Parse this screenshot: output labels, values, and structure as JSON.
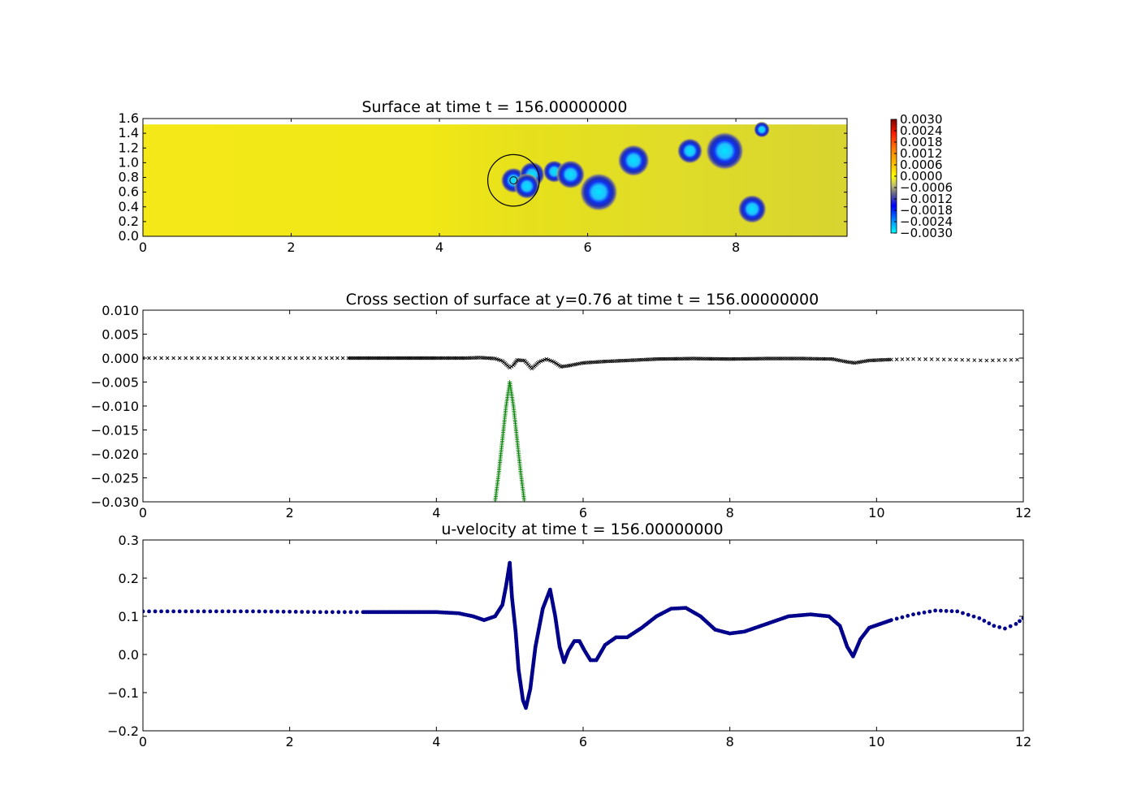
{
  "panels": [
    {
      "title": "Surface at time t =   156.00000000"
    },
    {
      "title": "Cross section of surface at y=0.76 at time t =   156.00000000"
    },
    {
      "title": "u-velocity at time t =   156.00000000"
    }
  ],
  "chart_data": [
    {
      "type": "heatmap",
      "title": "Surface at time t =   156.00000000",
      "xlim": [
        0,
        9.5
      ],
      "ylim": [
        0,
        1.6
      ],
      "field_extent_y": [
        0,
        1.52
      ],
      "xticks": [
        "0",
        "2",
        "4",
        "6",
        "8"
      ],
      "yticks": [
        "0.0",
        "0.2",
        "0.4",
        "0.6",
        "0.8",
        "1.0",
        "1.2",
        "1.4",
        "1.6"
      ],
      "colorbar": {
        "range": [
          -0.003,
          0.003
        ],
        "ticks": [
          "0.0030",
          "0.0024",
          "0.0018",
          "0.0012",
          "0.0006",
          "0.0000",
          "−0.0006",
          "−0.0012",
          "−0.0018",
          "−0.0024",
          "−0.0030"
        ]
      },
      "depressions": [
        {
          "x": 5.0,
          "y": 0.76,
          "depth": -0.003,
          "r": 0.08
        },
        {
          "x": 5.25,
          "y": 0.84,
          "depth": -0.0028,
          "r": 0.08
        },
        {
          "x": 5.18,
          "y": 0.68,
          "depth": -0.0028,
          "r": 0.08
        },
        {
          "x": 5.55,
          "y": 0.88,
          "depth": -0.0025,
          "r": 0.07
        },
        {
          "x": 5.77,
          "y": 0.84,
          "depth": -0.0028,
          "r": 0.09
        },
        {
          "x": 6.15,
          "y": 0.6,
          "depth": -0.003,
          "r": 0.12
        },
        {
          "x": 6.62,
          "y": 1.03,
          "depth": -0.003,
          "r": 0.1
        },
        {
          "x": 7.38,
          "y": 1.16,
          "depth": -0.0028,
          "r": 0.08
        },
        {
          "x": 7.85,
          "y": 1.16,
          "depth": -0.003,
          "r": 0.12
        },
        {
          "x": 8.22,
          "y": 0.37,
          "depth": -0.003,
          "r": 0.09
        },
        {
          "x": 8.35,
          "y": 1.45,
          "depth": -0.0022,
          "r": 0.05
        }
      ],
      "circle": {
        "x": 5.0,
        "y": 0.76,
        "r": 0.35
      },
      "inner_circle": {
        "x": 5.0,
        "y": 0.76,
        "r": 0.05
      }
    },
    {
      "type": "scatter",
      "title": "Cross section of surface at y=0.76 at time t =   156.00000000",
      "xlim": [
        0,
        12
      ],
      "ylim": [
        -0.03,
        0.01
      ],
      "xticks": [
        "0",
        "2",
        "4",
        "6",
        "8",
        "10",
        "12"
      ],
      "yticks": [
        "0.010",
        "0.005",
        "0.000",
        "−0.005",
        "−0.010",
        "−0.015",
        "−0.020",
        "−0.025",
        "−0.030"
      ],
      "series": [
        {
          "marker": "x",
          "color": "#000000",
          "points": [
            [
              0,
              0
            ],
            [
              0.5,
              0
            ],
            [
              1,
              0
            ],
            [
              1.5,
              0
            ],
            [
              2,
              0
            ],
            [
              2.5,
              0
            ],
            [
              2.8,
              0
            ],
            [
              3.5,
              0
            ],
            [
              4,
              0
            ],
            [
              4.4,
              0
            ],
            [
              4.6,
              0.0001
            ],
            [
              4.8,
              -0.0001
            ],
            [
              4.9,
              -0.0006
            ],
            [
              5.0,
              -0.002
            ],
            [
              5.05,
              -0.0015
            ],
            [
              5.1,
              -0.0004
            ],
            [
              5.2,
              -0.0005
            ],
            [
              5.3,
              -0.0022
            ],
            [
              5.4,
              -0.0008
            ],
            [
              5.5,
              -0.0002
            ],
            [
              5.6,
              -0.0008
            ],
            [
              5.7,
              -0.0018
            ],
            [
              5.8,
              -0.0016
            ],
            [
              6,
              -0.001
            ],
            [
              6.3,
              -0.0007
            ],
            [
              6.6,
              -0.0005
            ],
            [
              7,
              -0.0002
            ],
            [
              7.5,
              -0.0001
            ],
            [
              8,
              -0.0002
            ],
            [
              8.5,
              -0.0001
            ],
            [
              9,
              -0.0001
            ],
            [
              9.4,
              -0.0002
            ],
            [
              9.6,
              -0.0008
            ],
            [
              9.7,
              -0.001
            ],
            [
              9.9,
              -0.0005
            ],
            [
              10.2,
              -0.0003
            ],
            [
              10.5,
              -0.0002
            ],
            [
              11,
              -0.0003
            ],
            [
              11.5,
              -0.0005
            ],
            [
              12,
              -0.0003
            ]
          ]
        },
        {
          "marker": "+",
          "color": "#008000",
          "points": [
            [
              4.8,
              -0.03
            ],
            [
              4.85,
              -0.024
            ],
            [
              4.9,
              -0.017
            ],
            [
              4.95,
              -0.01
            ],
            [
              5.0,
              -0.005
            ],
            [
              5.05,
              -0.01
            ],
            [
              5.1,
              -0.017
            ],
            [
              5.15,
              -0.024
            ],
            [
              5.2,
              -0.03
            ]
          ]
        }
      ]
    },
    {
      "type": "scatter",
      "title": "u-velocity at time t =   156.00000000",
      "xlim": [
        0,
        12
      ],
      "ylim": [
        -0.2,
        0.3
      ],
      "xticks": [
        "0",
        "2",
        "4",
        "6",
        "8",
        "10",
        "12"
      ],
      "yticks": [
        "0.3",
        "0.2",
        "0.1",
        "0.0",
        "−0.1",
        "−0.2"
      ],
      "series": [
        {
          "marker": "o",
          "color": "#00008b",
          "points": [
            [
              0,
              0.113
            ],
            [
              0.5,
              0.113
            ],
            [
              1,
              0.113
            ],
            [
              1.5,
              0.113
            ],
            [
              2,
              0.112
            ],
            [
              2.5,
              0.111
            ],
            [
              3,
              0.111
            ],
            [
              3.5,
              0.111
            ],
            [
              4,
              0.111
            ],
            [
              4.3,
              0.108
            ],
            [
              4.5,
              0.1
            ],
            [
              4.65,
              0.09
            ],
            [
              4.8,
              0.1
            ],
            [
              4.9,
              0.13
            ],
            [
              4.95,
              0.18
            ],
            [
              5.0,
              0.24
            ],
            [
              5.03,
              0.15
            ],
            [
              5.08,
              0.06
            ],
            [
              5.12,
              -0.04
            ],
            [
              5.18,
              -0.12
            ],
            [
              5.22,
              -0.14
            ],
            [
              5.28,
              -0.09
            ],
            [
              5.35,
              0.02
            ],
            [
              5.45,
              0.12
            ],
            [
              5.55,
              0.17
            ],
            [
              5.62,
              0.1
            ],
            [
              5.68,
              0.02
            ],
            [
              5.74,
              -0.02
            ],
            [
              5.8,
              0.01
            ],
            [
              5.88,
              0.035
            ],
            [
              5.95,
              0.035
            ],
            [
              6.02,
              0.01
            ],
            [
              6.1,
              -0.015
            ],
            [
              6.18,
              -0.015
            ],
            [
              6.3,
              0.025
            ],
            [
              6.45,
              0.045
            ],
            [
              6.6,
              0.045
            ],
            [
              6.8,
              0.07
            ],
            [
              7.0,
              0.1
            ],
            [
              7.2,
              0.12
            ],
            [
              7.4,
              0.122
            ],
            [
              7.6,
              0.1
            ],
            [
              7.8,
              0.065
            ],
            [
              8.0,
              0.055
            ],
            [
              8.2,
              0.06
            ],
            [
              8.5,
              0.08
            ],
            [
              8.8,
              0.1
            ],
            [
              9.1,
              0.105
            ],
            [
              9.35,
              0.1
            ],
            [
              9.5,
              0.075
            ],
            [
              9.6,
              0.02
            ],
            [
              9.68,
              -0.005
            ],
            [
              9.78,
              0.04
            ],
            [
              9.9,
              0.07
            ],
            [
              10.05,
              0.08
            ],
            [
              10.2,
              0.09
            ],
            [
              10.5,
              0.105
            ],
            [
              10.8,
              0.115
            ],
            [
              11.1,
              0.113
            ],
            [
              11.4,
              0.095
            ],
            [
              11.6,
              0.075
            ],
            [
              11.75,
              0.068
            ],
            [
              11.9,
              0.08
            ],
            [
              12,
              0.095
            ]
          ]
        }
      ]
    }
  ]
}
